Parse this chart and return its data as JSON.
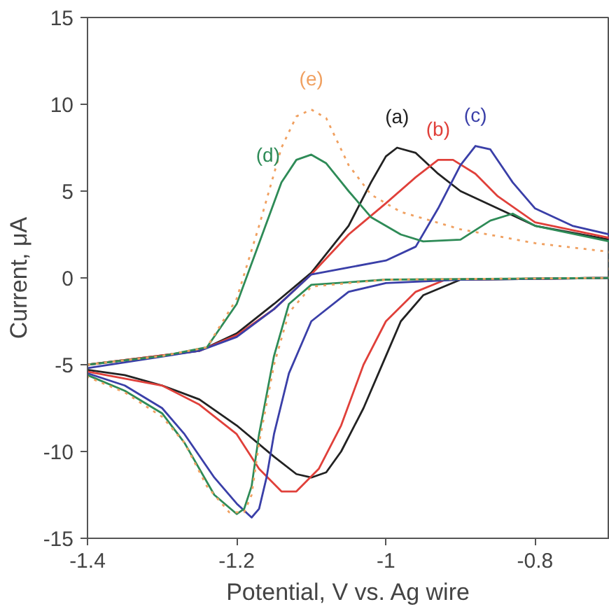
{
  "chart_data": {
    "type": "line",
    "xlabel": "Potential, V vs. Ag wire",
    "ylabel": "Current, μA",
    "xlim": [
      -1.4,
      -0.7
    ],
    "xticks": [
      -1.4,
      -1.2,
      -1,
      -0.8
    ],
    "ylim": [
      -15,
      15
    ],
    "yticks": [
      -15,
      -10,
      -5,
      0,
      5,
      10,
      15
    ],
    "grid": false,
    "series": [
      {
        "name": "(a)",
        "color": "#222222",
        "x": [
          -1.4,
          -1.25,
          -1.2,
          -1.15,
          -1.1,
          -1.05,
          -1.02,
          -1.0,
          -0.985,
          -0.96,
          -0.93,
          -0.9,
          -0.85,
          -0.8,
          -0.7,
          -0.7,
          -0.9,
          -0.95,
          -0.98,
          -1.0,
          -1.03,
          -1.06,
          -1.08,
          -1.1,
          -1.12,
          -1.15,
          -1.2,
          -1.25,
          -1.3,
          -1.35,
          -1.4
        ],
        "values": [
          -5,
          -4.2,
          -3.2,
          -1.5,
          0.3,
          3,
          5.5,
          7,
          7.5,
          7.2,
          6,
          5,
          4,
          3,
          2.2,
          0,
          -0.1,
          -1,
          -2.5,
          -4.5,
          -7.5,
          -10,
          -11.2,
          -11.5,
          -11.3,
          -10.3,
          -8.5,
          -7,
          -6.2,
          -5.6,
          -5.3
        ]
      },
      {
        "name": "(b)",
        "color": "#e0403a",
        "x": [
          -1.4,
          -1.25,
          -1.2,
          -1.15,
          -1.1,
          -1.05,
          -1.0,
          -0.96,
          -0.93,
          -0.91,
          -0.88,
          -0.85,
          -0.8,
          -0.7,
          -0.7,
          -0.92,
          -0.96,
          -1.0,
          -1.03,
          -1.06,
          -1.09,
          -1.12,
          -1.14,
          -1.17,
          -1.2,
          -1.25,
          -1.3,
          -1.4
        ],
        "values": [
          -5,
          -4.2,
          -3.3,
          -1.8,
          0.2,
          2.5,
          4.3,
          5.8,
          6.8,
          6.8,
          6,
          4.7,
          3.2,
          2.3,
          0,
          -0.1,
          -0.8,
          -2.5,
          -5,
          -8.5,
          -11,
          -12.3,
          -12.3,
          -11,
          -9,
          -7.3,
          -6.2,
          -5.4
        ]
      },
      {
        "name": "(c)",
        "color": "#3a3fa8",
        "x": [
          -1.4,
          -1.25,
          -1.2,
          -1.15,
          -1.1,
          -1.05,
          -1.0,
          -0.96,
          -0.93,
          -0.9,
          -0.88,
          -0.86,
          -0.83,
          -0.8,
          -0.75,
          -0.7,
          -0.7,
          -0.9,
          -1.0,
          -1.05,
          -1.1,
          -1.13,
          -1.15,
          -1.16,
          -1.17,
          -1.18,
          -1.2,
          -1.23,
          -1.27,
          -1.3,
          -1.35,
          -1.4
        ],
        "values": [
          -5.2,
          -4.2,
          -3.4,
          -1.8,
          0.2,
          0.6,
          1,
          1.8,
          4,
          6.5,
          7.6,
          7.4,
          5.5,
          4,
          3,
          2.5,
          0,
          -0.1,
          -0.3,
          -0.8,
          -2.5,
          -5.5,
          -9,
          -11.5,
          -13.3,
          -13.8,
          -13,
          -11.5,
          -9,
          -7.5,
          -6.2,
          -5.5
        ]
      },
      {
        "name": "(d)",
        "color": "#2e8b57",
        "x": [
          -1.4,
          -1.3,
          -1.24,
          -1.2,
          -1.17,
          -1.14,
          -1.12,
          -1.1,
          -1.08,
          -1.05,
          -1.02,
          -0.98,
          -0.95,
          -0.9,
          -0.86,
          -0.83,
          -0.8,
          -0.7,
          -0.7,
          -1.0,
          -1.1,
          -1.13,
          -1.15,
          -1.17,
          -1.18,
          -1.19,
          -1.2,
          -1.23,
          -1.27,
          -1.3,
          -1.35,
          -1.4
        ],
        "values": [
          -5,
          -4.5,
          -4,
          -1.5,
          2,
          5.5,
          6.8,
          7.1,
          6.6,
          5,
          3.5,
          2.5,
          2.1,
          2.2,
          3.3,
          3.7,
          3,
          2.1,
          0,
          -0.1,
          -0.4,
          -1.5,
          -4.5,
          -9,
          -12,
          -13.3,
          -13.6,
          -12.5,
          -9.5,
          -7.8,
          -6.5,
          -5.6
        ]
      },
      {
        "name": "(e)",
        "color": "#f0a060",
        "line_style": "dotted",
        "x": [
          -1.4,
          -1.3,
          -1.24,
          -1.2,
          -1.17,
          -1.14,
          -1.12,
          -1.1,
          -1.08,
          -1.05,
          -1.02,
          -0.98,
          -0.9,
          -0.8,
          -0.7,
          -0.7,
          -1.0,
          -1.1,
          -1.13,
          -1.15,
          -1.17,
          -1.18,
          -1.19,
          -1.21,
          -1.24,
          -1.27,
          -1.3,
          -1.35,
          -1.4
        ],
        "values": [
          -5,
          -4.5,
          -4,
          -1.2,
          3,
          7.5,
          9.3,
          9.7,
          9.2,
          6.5,
          4.8,
          3.8,
          2.8,
          2,
          1.5,
          0,
          -0.1,
          -0.5,
          -2,
          -5,
          -9.5,
          -12.5,
          -13.5,
          -13.5,
          -12,
          -9.5,
          -8,
          -6.6,
          -5.7
        ]
      }
    ]
  }
}
